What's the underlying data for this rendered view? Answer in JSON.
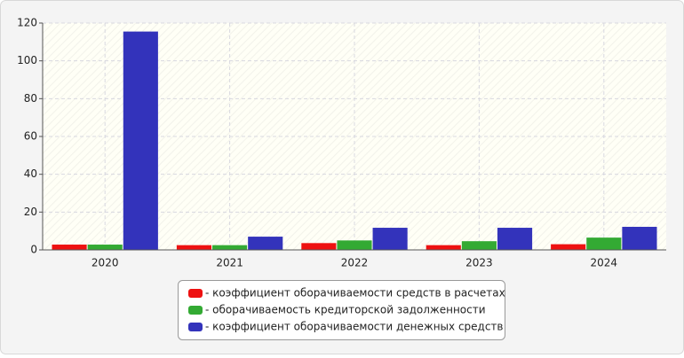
{
  "chart_data": {
    "type": "bar",
    "categories": [
      "2020",
      "2021",
      "2022",
      "2023",
      "2024"
    ],
    "series": [
      {
        "name": "- коэффициент оборачиваемости средств в расчетах",
        "color": "#ee1111",
        "values": [
          2.8,
          2.5,
          3.6,
          2.5,
          3.0
        ]
      },
      {
        "name": "- оборачиваемость кредиторской задолженности",
        "color": "#33aa33",
        "values": [
          2.8,
          2.5,
          5.0,
          4.6,
          6.5
        ]
      },
      {
        "name": "- коэффициент оборачиваемости денежных средств",
        "color": "#3333bb",
        "values": [
          115.5,
          7.0,
          11.7,
          11.7,
          12.2
        ]
      }
    ],
    "ylim": [
      0,
      120
    ],
    "yticks": [
      0,
      20,
      40,
      60,
      80,
      100,
      120
    ],
    "grid": true,
    "legend": "bottom"
  }
}
